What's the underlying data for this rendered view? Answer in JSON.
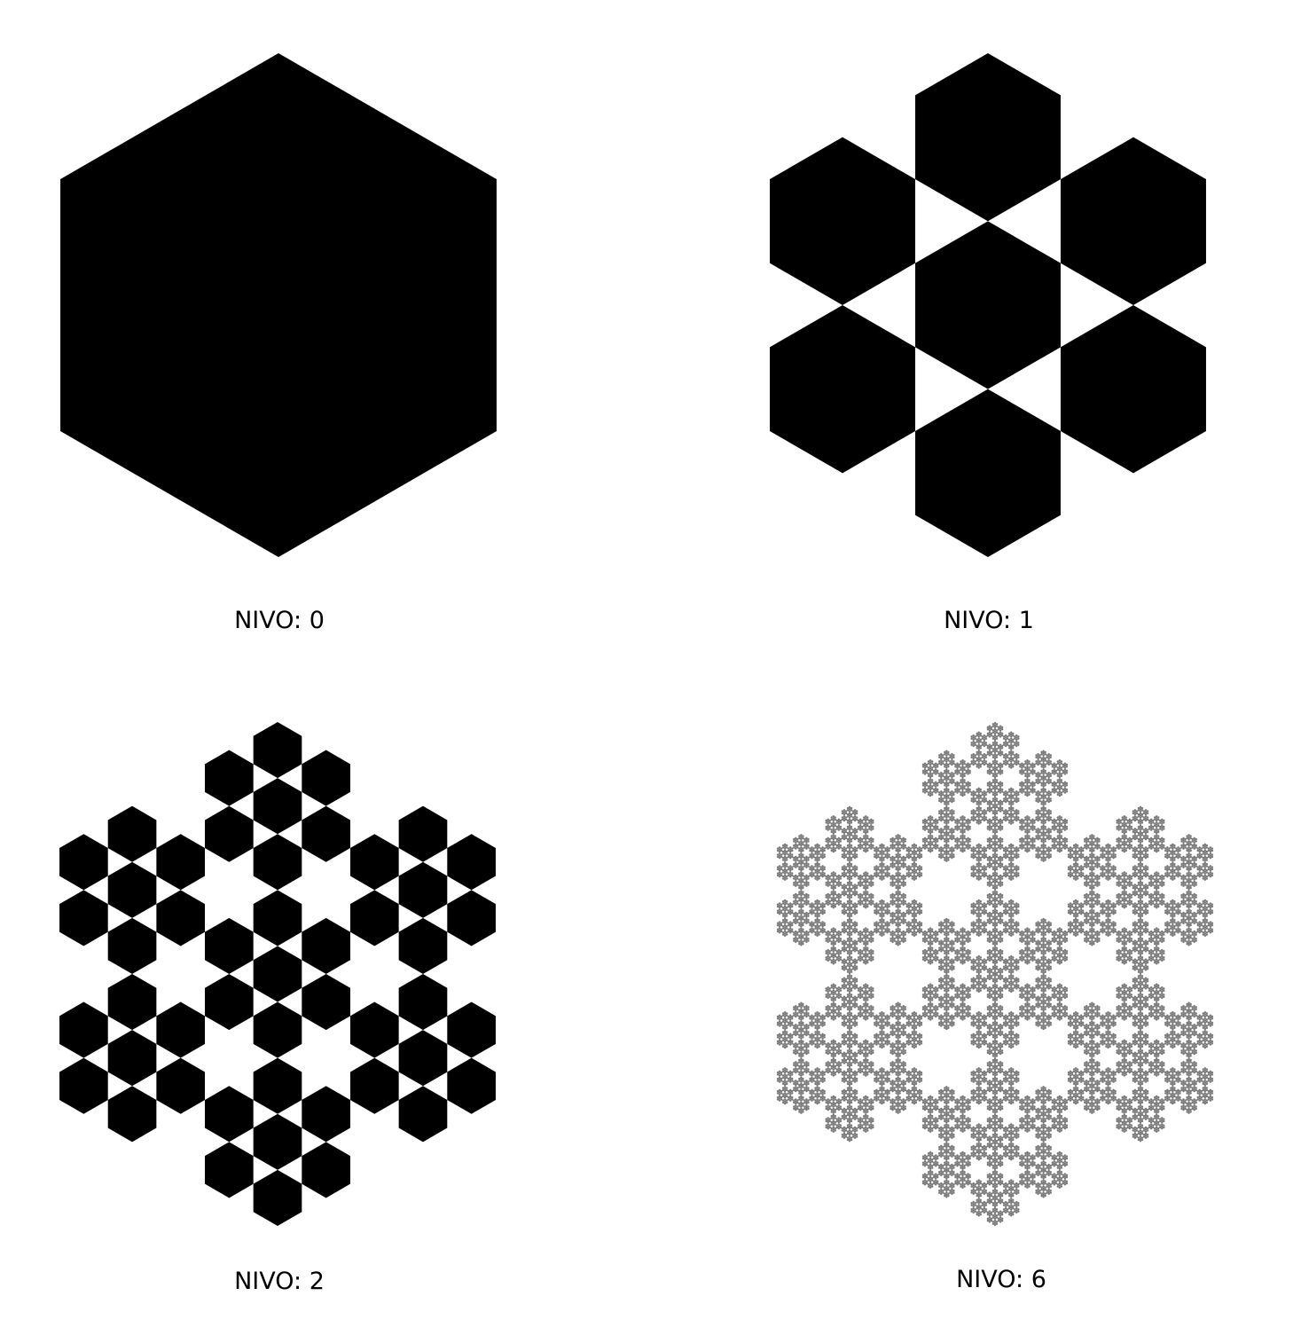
{
  "panels": [
    {
      "label": "NIVO: 0",
      "level": 0,
      "fill_color": "#000000"
    },
    {
      "label": "NIVO: 1",
      "level": 1,
      "fill_color": "#000000"
    },
    {
      "label": "NIVO: 2",
      "level": 2,
      "fill_color": "#000000"
    },
    {
      "label": "NIVO: 6",
      "level": 6,
      "fill_color": "#808080"
    }
  ],
  "background_color": "#ffffff"
}
